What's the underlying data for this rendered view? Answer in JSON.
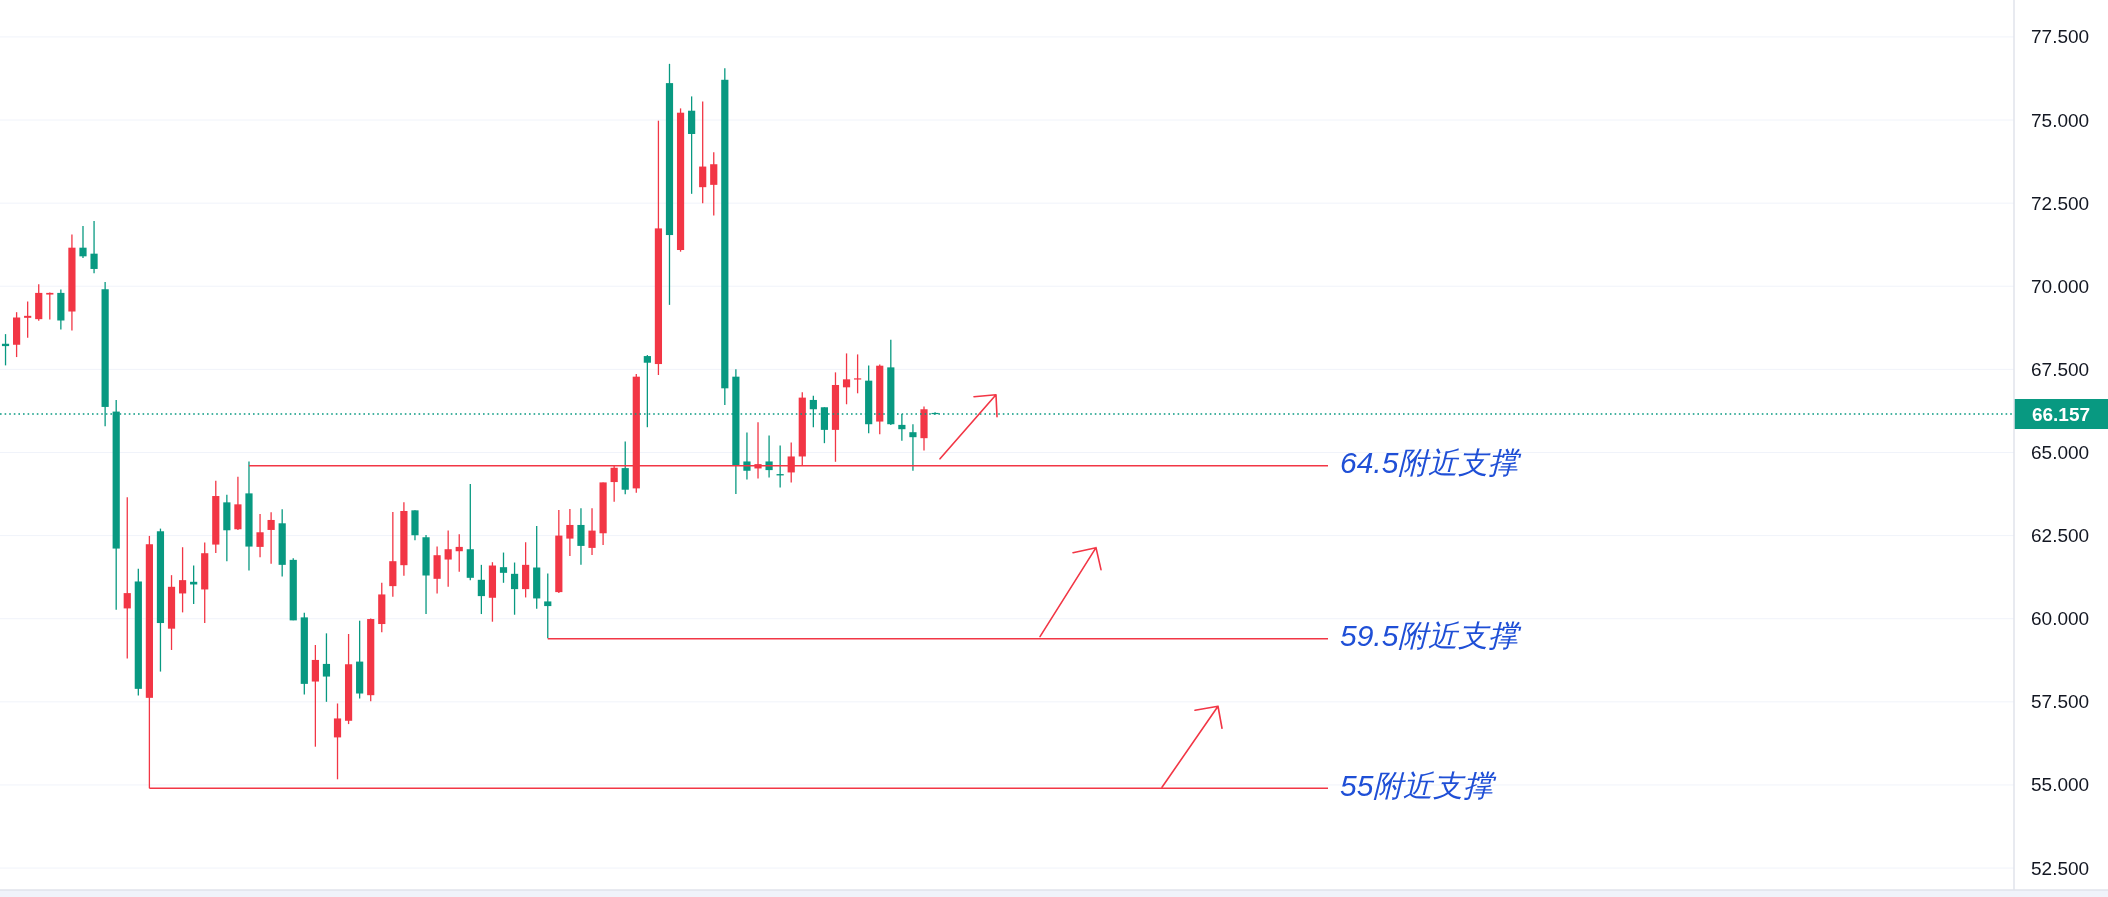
{
  "chart_data": {
    "type": "candlestick",
    "categories": [
      null,
      null,
      null,
      null,
      null,
      null,
      null,
      null,
      null,
      null,
      null,
      null,
      null,
      null,
      null,
      null,
      null,
      null,
      null,
      null,
      null,
      null,
      null,
      null,
      null,
      null,
      null,
      null,
      null,
      null,
      null,
      null,
      null,
      null,
      null,
      null,
      null,
      null,
      null,
      null,
      null,
      null,
      null,
      null,
      null,
      null,
      null,
      null,
      null,
      null,
      null,
      null,
      null,
      null,
      null,
      null,
      null,
      null,
      null,
      null,
      null,
      null,
      null,
      null,
      null,
      null,
      null,
      null,
      null,
      null,
      null,
      null,
      null,
      null,
      null,
      null,
      null,
      null,
      null,
      null,
      null,
      null,
      null,
      null,
      null,
      null,
      null,
      null,
      null,
      null,
      null,
      null,
      null,
      null,
      null,
      null,
      null,
      null,
      null,
      null,
      null,
      null,
      null,
      null,
      null,
      null,
      null,
      null,
      null,
      null,
      null,
      null,
      null,
      null,
      null,
      null,
      null,
      null,
      null,
      null,
      null,
      null,
      null,
      null,
      null,
      null,
      null,
      null,
      null,
      null,
      null,
      null,
      null,
      null,
      null,
      null,
      null,
      null,
      null,
      null,
      null,
      null,
      null,
      null,
      null,
      null,
      null,
      null,
      null,
      null,
      null,
      null,
      null,
      null,
      null,
      null,
      null,
      null,
      null,
      null,
      null,
      null,
      null,
      null,
      null,
      null,
      null,
      null,
      null,
      null,
      null,
      null,
      null,
      null,
      null,
      null,
      null,
      null,
      null,
      null,
      null,
      null
    ],
    "ohlc": [
      [
        68.27,
        68.56,
        67.62,
        68.2
      ],
      [
        68.24,
        69.22,
        67.87,
        69.06
      ],
      [
        69.05,
        69.54,
        68.45,
        69.11
      ],
      [
        69.01,
        70.06,
        68.96,
        69.8
      ],
      [
        69.75,
        69.81,
        69.0,
        69.8
      ],
      [
        69.8,
        69.9,
        68.7,
        68.97
      ],
      [
        69.24,
        71.56,
        68.67,
        71.16
      ],
      [
        71.16,
        71.81,
        70.85,
        70.9
      ],
      [
        70.98,
        71.96,
        70.39,
        70.52
      ],
      [
        69.91,
        70.13,
        65.79,
        66.37
      ],
      [
        66.23,
        66.58,
        60.27,
        62.11
      ],
      [
        60.31,
        63.65,
        58.8,
        60.77
      ],
      [
        61.12,
        61.5,
        57.69,
        57.89
      ],
      [
        57.62,
        62.49,
        54.9,
        62.24
      ],
      [
        62.63,
        62.71,
        58.41,
        59.87
      ],
      [
        59.7,
        61.31,
        59.06,
        60.96
      ],
      [
        60.76,
        62.15,
        60.19,
        61.16
      ],
      [
        61.11,
        61.6,
        60.44,
        61.03
      ],
      [
        60.88,
        62.29,
        59.87,
        61.97
      ],
      [
        62.23,
        64.15,
        61.98,
        63.69
      ],
      [
        63.5,
        63.73,
        61.73,
        62.66
      ],
      [
        62.69,
        64.27,
        62.67,
        63.44
      ],
      [
        63.77,
        64.73,
        61.45,
        62.17
      ],
      [
        62.16,
        63.15,
        61.85,
        62.6
      ],
      [
        62.67,
        63.2,
        61.65,
        62.97
      ],
      [
        62.87,
        63.29,
        61.27,
        61.62
      ],
      [
        61.77,
        61.82,
        59.95,
        59.95
      ],
      [
        60.04,
        60.18,
        57.72,
        58.04
      ],
      [
        58.11,
        59.21,
        56.15,
        58.76
      ],
      [
        58.64,
        59.56,
        57.5,
        58.26
      ],
      [
        56.43,
        57.45,
        55.17,
        57.0
      ],
      [
        56.93,
        59.54,
        56.83,
        58.63
      ],
      [
        58.71,
        59.94,
        57.6,
        57.75
      ],
      [
        57.7,
        60.01,
        57.52,
        59.99
      ],
      [
        59.84,
        61.08,
        59.59,
        60.73
      ],
      [
        60.98,
        63.21,
        60.66,
        61.73
      ],
      [
        61.61,
        63.5,
        61.29,
        63.24
      ],
      [
        63.26,
        63.26,
        62.36,
        62.51
      ],
      [
        62.45,
        62.52,
        60.14,
        61.3
      ],
      [
        61.2,
        62.17,
        60.76,
        61.91
      ],
      [
        61.78,
        62.65,
        60.96,
        62.09
      ],
      [
        62.03,
        62.54,
        61.41,
        62.16
      ],
      [
        62.09,
        64.05,
        61.16,
        61.23
      ],
      [
        61.17,
        61.62,
        60.14,
        60.68
      ],
      [
        60.63,
        61.7,
        59.91,
        61.6
      ],
      [
        61.55,
        61.99,
        61.08,
        61.38
      ],
      [
        61.35,
        61.69,
        60.12,
        60.89
      ],
      [
        60.89,
        62.3,
        60.64,
        61.62
      ],
      [
        61.54,
        62.79,
        60.3,
        60.61
      ],
      [
        60.52,
        61.36,
        59.41,
        60.38
      ],
      [
        60.8,
        63.27,
        60.77,
        62.5
      ],
      [
        62.41,
        63.3,
        61.89,
        62.82
      ],
      [
        62.82,
        63.32,
        61.62,
        62.19
      ],
      [
        62.13,
        63.32,
        61.92,
        62.65
      ],
      [
        62.57,
        64.1,
        62.22,
        64.1
      ],
      [
        64.11,
        64.62,
        63.52,
        64.54
      ],
      [
        64.53,
        65.33,
        63.74,
        63.88
      ],
      [
        63.92,
        67.36,
        63.79,
        67.28
      ],
      [
        67.9,
        67.93,
        65.76,
        67.7
      ],
      [
        67.66,
        74.98,
        67.33,
        71.74
      ],
      [
        76.11,
        76.69,
        69.44,
        71.54
      ],
      [
        71.09,
        75.35,
        71.04,
        75.22
      ],
      [
        75.28,
        75.71,
        72.78,
        74.58
      ],
      [
        72.98,
        75.56,
        72.5,
        73.6
      ],
      [
        73.05,
        74.03,
        72.13,
        73.67
      ],
      [
        76.21,
        76.56,
        66.43,
        66.93
      ],
      [
        67.28,
        67.5,
        63.75,
        64.62
      ],
      [
        64.73,
        65.6,
        64.19,
        64.45
      ],
      [
        64.52,
        65.91,
        64.22,
        64.65
      ],
      [
        64.73,
        65.51,
        64.25,
        64.47
      ],
      [
        64.35,
        65.21,
        63.95,
        64.31
      ],
      [
        64.4,
        65.3,
        64.1,
        64.88
      ],
      [
        64.88,
        66.81,
        64.59,
        66.65
      ],
      [
        66.58,
        66.71,
        65.76,
        66.3
      ],
      [
        66.36,
        66.36,
        65.28,
        65.68
      ],
      [
        65.68,
        67.41,
        64.72,
        67.03
      ],
      [
        66.96,
        67.98,
        66.45,
        67.2
      ],
      [
        67.2,
        67.95,
        66.78,
        67.23
      ],
      [
        67.16,
        67.62,
        65.58,
        65.85
      ],
      [
        65.93,
        67.65,
        65.55,
        67.61
      ],
      [
        67.56,
        68.39,
        65.83,
        65.85
      ],
      [
        65.83,
        66.16,
        65.35,
        65.7
      ],
      [
        65.61,
        65.85,
        64.45,
        65.46
      ],
      [
        65.43,
        66.38,
        65.06,
        66.3
      ],
      [
        66.19,
        66.21,
        66.14,
        66.157
      ],
      null,
      null,
      null,
      null,
      null,
      null,
      null,
      null,
      null,
      null,
      null,
      null,
      null,
      null,
      null,
      null,
      null,
      null,
      null,
      null,
      null,
      null,
      null,
      null,
      null,
      null,
      null,
      null,
      null,
      null,
      null,
      null,
      null,
      null,
      null,
      null,
      null,
      null,
      null,
      null,
      null,
      null,
      null,
      null,
      null,
      null,
      null,
      null,
      null,
      null,
      null,
      null,
      null,
      null,
      null,
      null,
      null,
      null,
      null,
      null,
      null,
      null,
      null,
      null,
      null,
      null,
      null,
      null,
      null,
      null,
      null,
      null,
      null,
      null,
      null,
      null,
      null,
      null,
      null,
      null,
      null,
      null,
      null,
      null,
      null,
      null,
      null,
      null,
      null,
      null,
      null,
      null,
      null,
      null,
      null,
      null,
      null
    ],
    "colors": [
      "#089981",
      "#f23645",
      "#f23645",
      "#f23645",
      "#f23645",
      "#089981",
      "#f23645",
      "#089981",
      "#089981",
      "#089981",
      "#089981",
      "#f23645",
      "#089981",
      "#f23645",
      "#089981",
      "#f23645",
      "#f23645",
      "#089981",
      "#f23645",
      "#f23645",
      "#089981",
      "#f23645",
      "#089981",
      "#f23645",
      "#f23645",
      "#089981",
      "#089981",
      "#089981",
      "#f23645",
      "#089981",
      "#f23645",
      "#f23645",
      "#089981",
      "#f23645",
      "#f23645",
      "#f23645",
      "#f23645",
      "#089981",
      "#089981",
      "#f23645",
      "#f23645",
      "#f23645",
      "#089981",
      "#089981",
      "#f23645",
      "#089981",
      "#089981",
      "#f23645",
      "#089981",
      "#089981",
      "#f23645",
      "#f23645",
      "#089981",
      "#f23645",
      "#f23645",
      "#f23645",
      "#089981",
      "#f23645",
      "#089981",
      "#f23645",
      "#089981",
      "#f23645",
      "#089981",
      "#f23645",
      "#f23645",
      "#089981",
      "#089981",
      "#089981",
      "#f23645",
      "#089981",
      "#089981",
      "#f23645",
      "#f23645",
      "#089981",
      "#089981",
      "#f23645",
      "#f23645",
      "#f23645",
      "#089981",
      "#f23645",
      "#089981",
      "#089981",
      "#089981",
      "#f23645",
      "#089981",
      null,
      null,
      null,
      null,
      null,
      null,
      null,
      null,
      null,
      null,
      null,
      null,
      null,
      null,
      null,
      null,
      null,
      null,
      null,
      null,
      null,
      null,
      null,
      null,
      null,
      null,
      null,
      null,
      null,
      null,
      null,
      null,
      null,
      null,
      null,
      null,
      null,
      null,
      null,
      null,
      null,
      null,
      null,
      null,
      null,
      null,
      null,
      null,
      null,
      null,
      null,
      null,
      null,
      null,
      null,
      null,
      null,
      null,
      null,
      null,
      null,
      null,
      null,
      null,
      null,
      null,
      null,
      null,
      null,
      null,
      null,
      null,
      null,
      null,
      null,
      null,
      null,
      null,
      null,
      null,
      null,
      null,
      null,
      null,
      null,
      null,
      null,
      null,
      null,
      null,
      null,
      null,
      null,
      null,
      null,
      null,
      null
    ],
    "ylim": [
      51.84,
      78.61
    ],
    "yticks": [
      {
        "value": 52.5,
        "label": "52.500"
      },
      {
        "value": 55,
        "label": "55.000"
      },
      {
        "value": 57.5,
        "label": "57.500"
      },
      {
        "value": 60,
        "label": "60.000"
      },
      {
        "value": 62.5,
        "label": "62.500"
      },
      {
        "value": 65,
        "label": "65.000"
      },
      {
        "value": 67.5,
        "label": "67.500"
      },
      {
        "value": 70,
        "label": "70.000"
      },
      {
        "value": 72.5,
        "label": "72.500"
      },
      {
        "value": 75,
        "label": "75.000"
      },
      {
        "value": 77.5,
        "label": "77.500"
      }
    ],
    "grid": "y",
    "ref_lines": [
      {
        "axis": "y",
        "value": 66.157,
        "label": "66.157",
        "color": "#089981",
        "line_style": "dotted"
      },
      {
        "axis": "y",
        "value": 64.6,
        "label": "64.5附近支撑",
        "color": "#f23645",
        "line_style": "solid"
      },
      {
        "axis": "y",
        "value": 59.4,
        "label": "59.5附近支撑",
        "color": "#f23645",
        "line_style": "solid"
      },
      {
        "axis": "y",
        "value": 54.9,
        "label": "55附近支撑",
        "color": "#f23645",
        "line_style": "solid"
      }
    ]
  }
}
